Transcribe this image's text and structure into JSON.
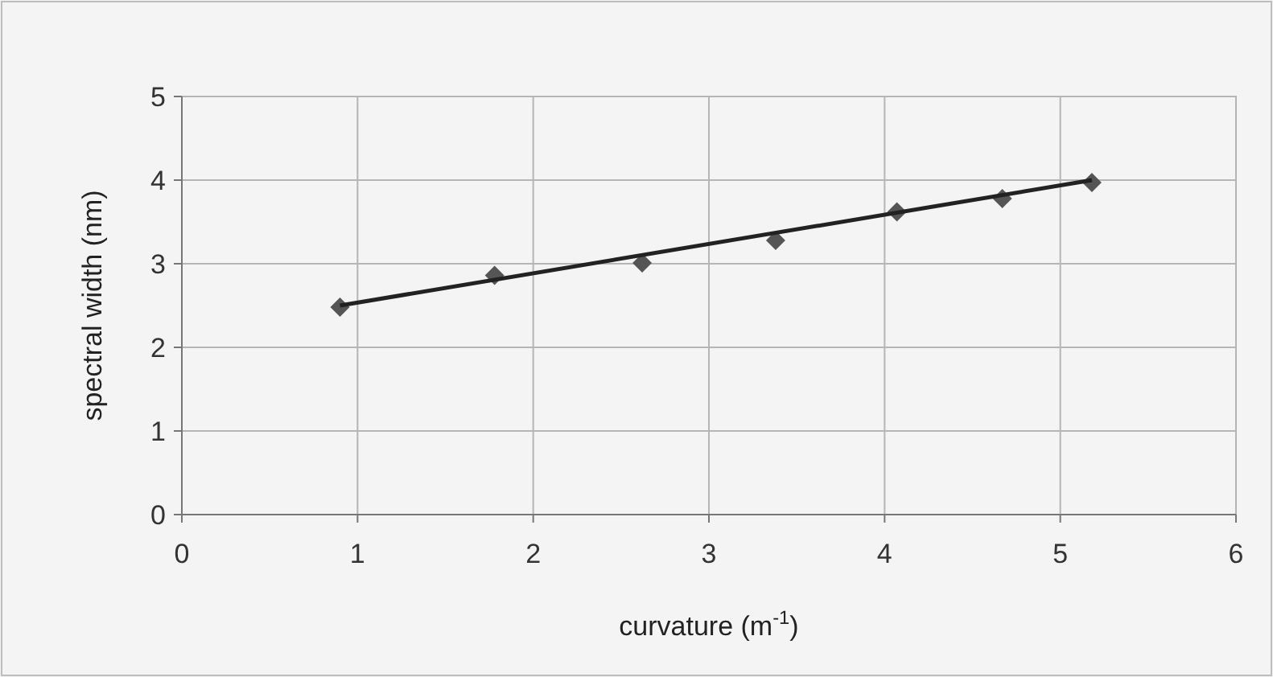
{
  "chart_data": {
    "type": "scatter",
    "xlabel": "curvature (m$^{-1}$)",
    "ylabel": "spectral width (nm)",
    "xlim": [
      0,
      6
    ],
    "xticks": [
      0,
      1,
      2,
      3,
      4,
      5,
      6
    ],
    "ylim": [
      0,
      5
    ],
    "yticks": [
      0,
      1,
      2,
      3,
      4,
      5
    ],
    "grid": true,
    "series": [
      {
        "color": "#555555",
        "marker": "diamond",
        "x": [
          0.9,
          1.78,
          2.62,
          3.38,
          4.07,
          4.67,
          5.18
        ],
        "values": [
          2.48,
          2.86,
          3.01,
          3.28,
          3.62,
          3.78,
          3.97
        ]
      },
      {
        "type": "line",
        "color": "#222222",
        "marker": "none",
        "line_style": "solid",
        "x": [
          0.9,
          5.18
        ],
        "values": [
          2.5,
          4.0
        ]
      }
    ]
  }
}
